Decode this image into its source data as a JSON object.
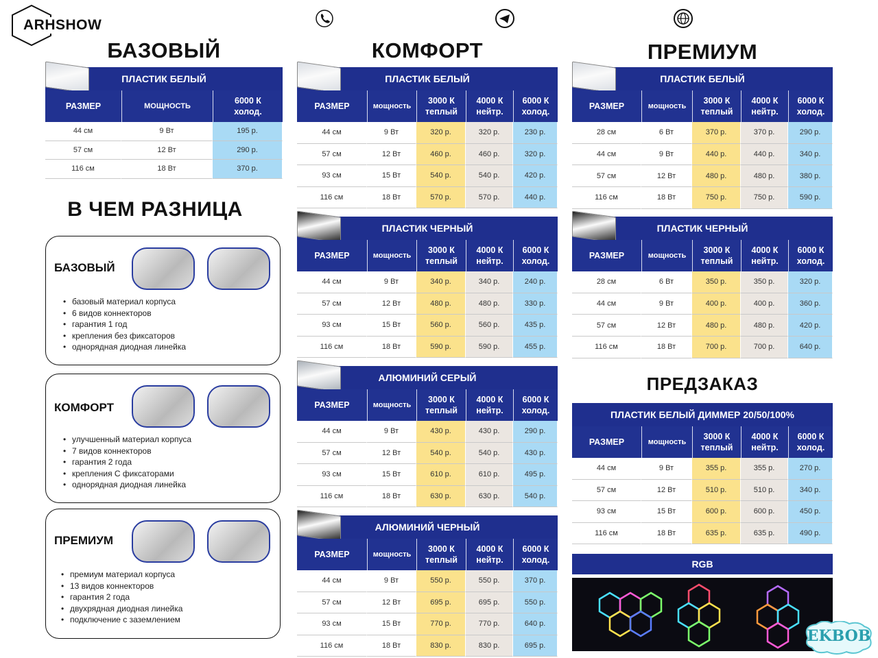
{
  "logo": "ARHSHOW",
  "headers": [
    "РАЗМЕР",
    "мощность",
    "3000 К\nтеплый",
    "4000 К\nнейтр.",
    "6000 К\nхолод."
  ],
  "columns": [
    {
      "title": "БАЗОВЫЙ",
      "tables": [
        {
          "title": "ПЛАСТИК БЕЛЫЙ",
          "headers": [
            "РАЗМЕР",
            "МОЩНОСТЬ",
            "6000 К\nхолод."
          ],
          "rows": [
            [
              "44 см",
              "9 Вт",
              "195 р."
            ],
            [
              "57 см",
              "12 Вт",
              "290 р."
            ],
            [
              "116 см",
              "18 Вт",
              "370 р."
            ]
          ]
        }
      ]
    },
    {
      "title": "КОМФОРТ",
      "tables": [
        {
          "title": "ПЛАСТИК БЕЛЫЙ",
          "rows": [
            [
              "44 см",
              "9 Вт",
              "320 р.",
              "320 р.",
              "230 р."
            ],
            [
              "57 см",
              "12 Вт",
              "460 р.",
              "460 р.",
              "320 р."
            ],
            [
              "93 см",
              "15 Вт",
              "540 р.",
              "540 р.",
              "420 р."
            ],
            [
              "116 см",
              "18 Вт",
              "570 р.",
              "570 р.",
              "440 р."
            ]
          ]
        },
        {
          "title": "ПЛАСТИК ЧЕРНЫЙ",
          "rows": [
            [
              "44 см",
              "9 Вт",
              "340 р.",
              "340 р.",
              "240 р."
            ],
            [
              "57 см",
              "12 Вт",
              "480 р.",
              "480 р.",
              "330 р."
            ],
            [
              "93 см",
              "15 Вт",
              "560 р.",
              "560 р.",
              "435 р."
            ],
            [
              "116 см",
              "18 Вт",
              "590 р.",
              "590 р.",
              "455 р."
            ]
          ]
        },
        {
          "title": "АЛЮМИНИЙ СЕРЫЙ",
          "rows": [
            [
              "44 см",
              "9 Вт",
              "430 р.",
              "430 р.",
              "290 р."
            ],
            [
              "57 см",
              "12 Вт",
              "540 р.",
              "540 р.",
              "430 р."
            ],
            [
              "93 см",
              "15 Вт",
              "610 р.",
              "610 р.",
              "495 р."
            ],
            [
              "116 см",
              "18 Вт",
              "630 р.",
              "630 р.",
              "540 р."
            ]
          ]
        },
        {
          "title": "АЛЮМИНИЙ ЧЕРНЫЙ",
          "rows": [
            [
              "44 см",
              "9 Вт",
              "550 р.",
              "550 р.",
              "370 р."
            ],
            [
              "57 см",
              "12 Вт",
              "695 р.",
              "695 р.",
              "550 р."
            ],
            [
              "93 см",
              "15 Вт",
              "770 р.",
              "770 р.",
              "640 р."
            ],
            [
              "116 см",
              "18 Вт",
              "830 р.",
              "830 р.",
              "695 р."
            ]
          ]
        }
      ]
    },
    {
      "title": "ПРЕМИУМ",
      "tables": [
        {
          "title": "ПЛАСТИК БЕЛЫЙ",
          "rows": [
            [
              "28 см",
              "6 Вт",
              "370 р.",
              "370 р.",
              "290 р."
            ],
            [
              "44 см",
              "9 Вт",
              "440 р.",
              "440 р.",
              "340 р."
            ],
            [
              "57 см",
              "12 Вт",
              "480 р.",
              "480 р.",
              "380 р."
            ],
            [
              "116 см",
              "18 Вт",
              "750 р.",
              "750 р.",
              "590 р."
            ]
          ]
        },
        {
          "title": "ПЛАСТИК ЧЕРНЫЙ",
          "rows": [
            [
              "28 см",
              "6 Вт",
              "350 р.",
              "350 р.",
              "320 р."
            ],
            [
              "44 см",
              "9 Вт",
              "400 р.",
              "400 р.",
              "360 р."
            ],
            [
              "57 см",
              "12 Вт",
              "480 р.",
              "480 р.",
              "420 р."
            ],
            [
              "116 см",
              "18 Вт",
              "700 р.",
              "700 р.",
              "640 р."
            ]
          ]
        }
      ]
    }
  ],
  "difference": {
    "title": "В ЧЕМ РАЗНИЦА",
    "cards": [
      {
        "name": "БАЗОВЫЙ",
        "features": [
          "базовый материал корпуса",
          "6 видов коннекторов",
          "гарантия 1 год",
          "крепления без фиксаторов",
          "однорядная диодная линейка"
        ]
      },
      {
        "name": "КОМФОРТ",
        "features": [
          "улучшенный материал корпуса",
          "7 видов коннекторов",
          "гарантия  2 года",
          "крепления С фиксаторами",
          "однорядная диодная линейка"
        ]
      },
      {
        "name": "ПРЕМИУМ",
        "features": [
          "премиум материал корпуса",
          "13 видов коннекторов",
          "гарантия  2 года",
          "двухрядная диодная линейка",
          "подключение с заземлением"
        ]
      }
    ]
  },
  "preorder": {
    "title": "ПРЕДЗАКАЗ",
    "table": {
      "title": "ПЛАСТИК БЕЛЫЙ ДИММЕР 20/50/100%",
      "rows": [
        [
          "44 см",
          "9 Вт",
          "355 р.",
          "355 р.",
          "270 р."
        ],
        [
          "57 см",
          "12 Вт",
          "510 р.",
          "510 р.",
          "340 р."
        ],
        [
          "93 см",
          "15 Вт",
          "600 р.",
          "600 р.",
          "450 р."
        ],
        [
          "116 см",
          "18 Вт",
          "635 р.",
          "635 р.",
          "490 р."
        ]
      ]
    },
    "rgb": "RGB"
  },
  "watermark": "EKBOB"
}
